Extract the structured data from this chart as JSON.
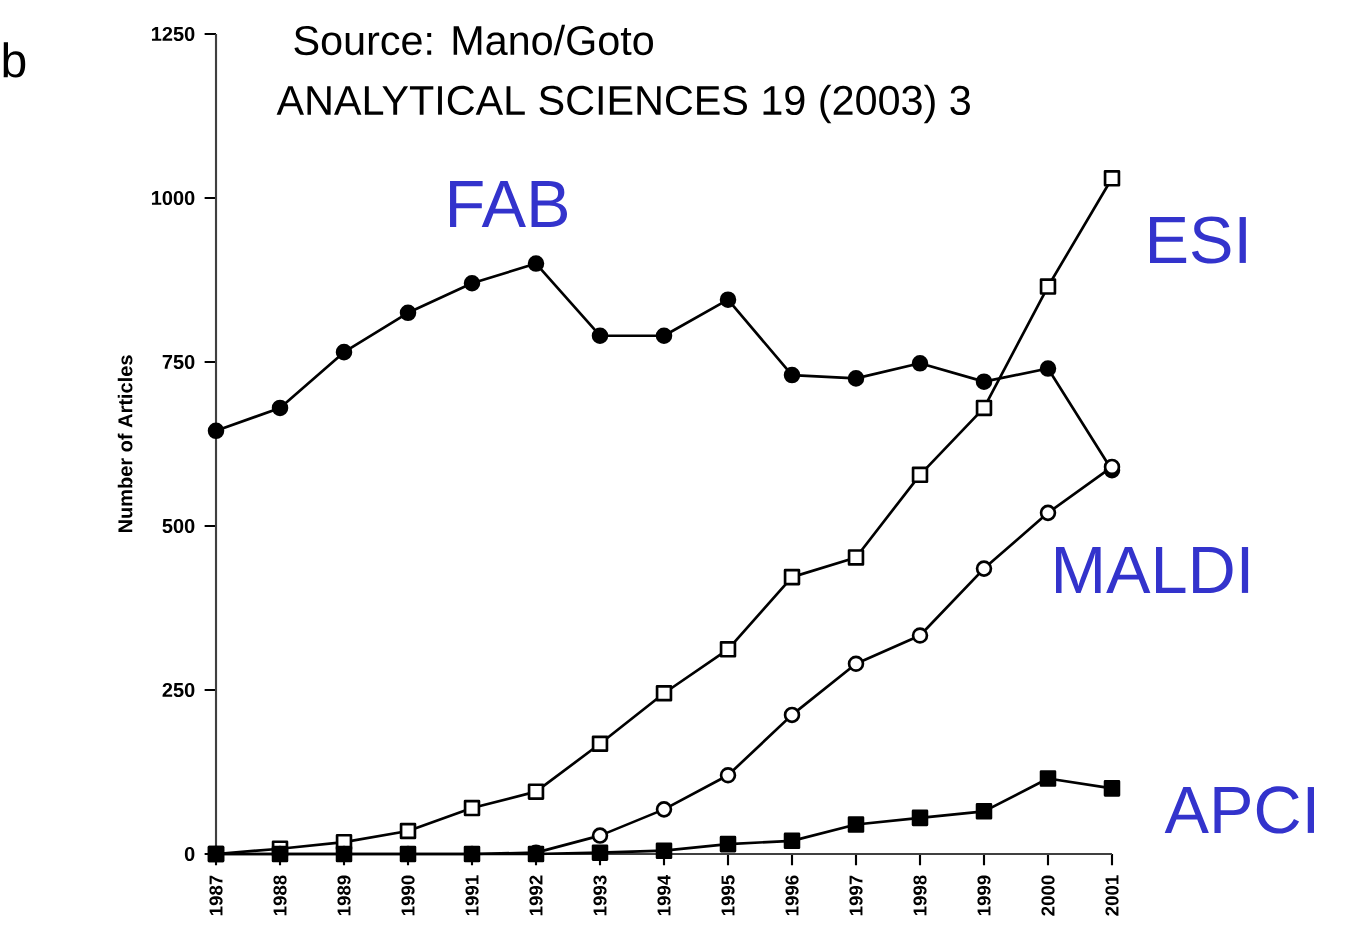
{
  "chart_data": {
    "type": "line",
    "ylabel": "Number of Articles",
    "categories": [
      "1987",
      "1988",
      "1989",
      "1990",
      "1991",
      "1992",
      "1993",
      "1994",
      "1995",
      "1996",
      "1997",
      "1998",
      "1999",
      "2000",
      "2001"
    ],
    "series": [
      {
        "name": "FAB",
        "color": "#000000",
        "marker": "circle",
        "values": [
          645,
          680,
          765,
          825,
          870,
          900,
          790,
          790,
          845,
          730,
          725,
          748,
          720,
          740,
          585
        ]
      },
      {
        "name": "ESI",
        "color": "#000000",
        "marker": "square",
        "values": [
          0,
          8,
          18,
          35,
          70,
          95,
          168,
          245,
          312,
          422,
          452,
          578,
          680,
          865,
          1030
        ]
      },
      {
        "name": "MALDI",
        "color": "#000000",
        "marker": "circle",
        "values": [
          0,
          0,
          0,
          0,
          0,
          2,
          28,
          68,
          120,
          212,
          290,
          333,
          435,
          520,
          590
        ]
      },
      {
        "name": "APCI",
        "color": "#000000",
        "marker": "square",
        "values": [
          0,
          0,
          0,
          0,
          0,
          0,
          2,
          5,
          15,
          20,
          45,
          55,
          65,
          115,
          100
        ]
      }
    ],
    "ylim": [
      0,
      1250
    ],
    "yticks": [
      0,
      250,
      500,
      750,
      1000,
      1250
    ],
    "line_style": "solid",
    "annotations": [
      "b",
      "Source: Mano/Goto",
      "ANALYTICAL SCIENCES 19 (2003) 3"
    ]
  }
}
